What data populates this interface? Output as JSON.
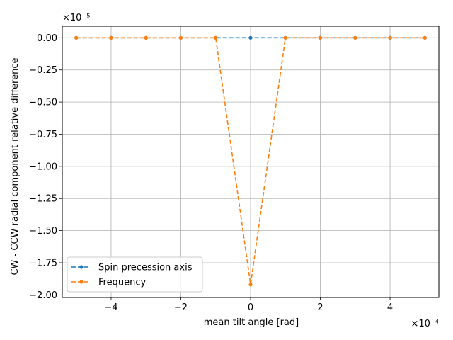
{
  "chart_data": {
    "type": "line",
    "xlabel": "mean tilt angle [rad]",
    "ylabel": "CW - CCW radial component relative difference",
    "x_multiplier": "×10⁻⁴",
    "y_multiplier": "×10⁻⁵",
    "xlim": [
      -5.4,
      5.4
    ],
    "ylim": [
      -2.02,
      0.09
    ],
    "xticks": [
      -4,
      -2,
      0,
      2,
      4
    ],
    "xtick_labels": [
      "−4",
      "−2",
      "0",
      "2",
      "4"
    ],
    "yticks": [
      0.0,
      -0.25,
      -0.5,
      -0.75,
      -1.0,
      -1.25,
      -1.5,
      -1.75,
      -2.0
    ],
    "ytick_labels": [
      "0.00",
      "−0.25",
      "−0.50",
      "−0.75",
      "−1.00",
      "−1.25",
      "−1.50",
      "−1.75",
      "−2.00"
    ],
    "grid": true,
    "legend_position": "lower-left",
    "x": [
      -5,
      -4,
      -3,
      -2,
      -1,
      0,
      1,
      2,
      3,
      4,
      5
    ],
    "series": [
      {
        "name": "Spin precession axis",
        "color": "#1f77b4",
        "linestyle": "dashed",
        "marker": "circle",
        "values": [
          0,
          0,
          0,
          0,
          0,
          0,
          0,
          0,
          0,
          0,
          0
        ]
      },
      {
        "name": "Frequency",
        "color": "#ff7f0e",
        "linestyle": "dashed",
        "marker": "circle",
        "values": [
          0,
          0,
          0,
          0,
          0,
          -1.92,
          0,
          0,
          0,
          0,
          0
        ]
      }
    ]
  }
}
